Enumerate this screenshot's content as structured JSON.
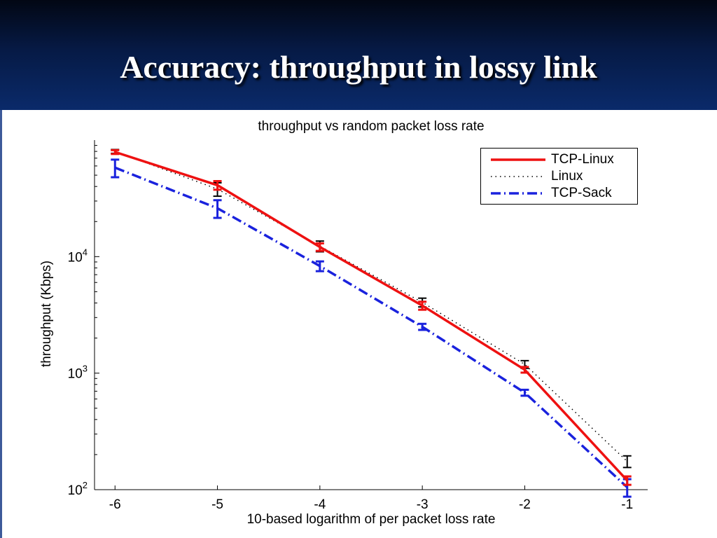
{
  "slide": {
    "title": "Accuracy: throughput in lossy link"
  },
  "chart_data": {
    "type": "line",
    "title": "throughput vs random packet loss rate",
    "xlabel": "10-based logarithm of per packet loss rate",
    "ylabel": "throughput (Kbps)",
    "x": [
      -6,
      -5,
      -4,
      -3,
      -2,
      -1
    ],
    "xticks": [
      "-6",
      "-5",
      "-4",
      "-3",
      "-2",
      "-1"
    ],
    "xlim": [
      -6.2,
      -0.8
    ],
    "yscale": "log",
    "ylim": [
      100,
      100000
    ],
    "yticks": [
      {
        "base": "10",
        "exp": "2",
        "value": 100
      },
      {
        "base": "10",
        "exp": "3",
        "value": 1000
      },
      {
        "base": "10",
        "exp": "4",
        "value": 10000
      }
    ],
    "grid": false,
    "legend_position": "top-right",
    "series": [
      {
        "name": "TCP-Linux",
        "color": "#ee1111",
        "style": "solid",
        "values": [
          79000,
          41000,
          12100,
          3800,
          1070,
          120
        ],
        "errors": [
          3000,
          3500,
          900,
          300,
          60,
          10
        ]
      },
      {
        "name": "Linux",
        "color": "#000000",
        "style": "dotted",
        "values": [
          80000,
          38000,
          12300,
          4050,
          1190,
          175
        ],
        "errors": [
          3000,
          5000,
          1300,
          350,
          90,
          20
        ]
      },
      {
        "name": "TCP-Sack",
        "color": "#1a22dd",
        "style": "dashdot",
        "values": [
          58000,
          26000,
          8300,
          2500,
          680,
          105
        ],
        "errors": [
          10000,
          4500,
          800,
          150,
          40,
          18
        ]
      }
    ]
  }
}
